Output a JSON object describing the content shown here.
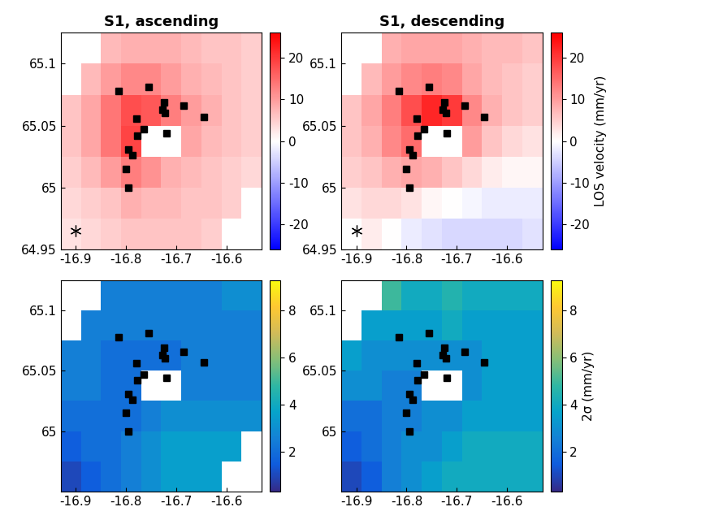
{
  "chart_data": [
    {
      "type": "heatmap",
      "title": "S1, ascending",
      "xlim": [
        -16.93,
        -16.53
      ],
      "ylim": [
        64.95,
        65.125
      ],
      "xticks": [
        -16.9,
        -16.8,
        -16.7,
        -16.6
      ],
      "yticks": [
        64.95,
        65,
        65.05,
        65.1
      ],
      "x_edges": [
        -16.93,
        -16.89,
        -16.85,
        -16.81,
        -16.77,
        -16.73,
        -16.69,
        -16.65,
        -16.61,
        -16.57,
        -16.53
      ],
      "y_edges": [
        64.95,
        64.975,
        65.0,
        65.025,
        65.05,
        65.075,
        65.1,
        65.125
      ],
      "cells": [
        [
          3,
          4,
          5,
          6,
          6,
          6,
          6,
          5,
          null,
          null
        ],
        [
          4,
          5,
          6,
          8,
          7,
          7,
          6,
          6,
          5,
          null
        ],
        [
          5,
          7,
          10,
          13,
          11,
          8,
          7,
          6,
          5,
          4
        ],
        [
          6,
          9,
          14,
          19,
          null,
          null,
          9,
          7,
          6,
          5
        ],
        [
          6,
          9,
          14,
          18,
          17,
          13,
          10,
          8,
          6,
          5
        ],
        [
          null,
          7,
          10,
          12,
          12,
          10,
          8,
          7,
          6,
          5
        ],
        [
          null,
          null,
          7,
          8,
          8,
          8,
          7,
          6,
          6,
          5
        ]
      ],
      "colorbar_range": [
        -26,
        26
      ],
      "colorbar_ticks": [
        -20,
        -10,
        0,
        10,
        20
      ],
      "stations": {
        "x": [
          -16.815,
          -16.755,
          -16.725,
          -16.728,
          -16.722,
          -16.685,
          -16.645,
          -16.78,
          -16.765,
          -16.778,
          -16.72,
          -16.795,
          -16.788,
          -16.8,
          -16.795
        ],
        "y": [
          65.078,
          65.081,
          65.069,
          65.063,
          65.06,
          65.066,
          65.057,
          65.056,
          65.047,
          65.042,
          65.044,
          65.031,
          65.026,
          65.015,
          65.0
        ],
        "marker": "square",
        "color": "#000000"
      },
      "reference_point": {
        "x": -16.9,
        "y": 64.965,
        "marker": "asterisk",
        "color": "#000000"
      }
    },
    {
      "type": "heatmap",
      "title": "S1, descending",
      "xlim": [
        -16.93,
        -16.53
      ],
      "ylim": [
        64.95,
        65.125
      ],
      "xticks": [
        -16.9,
        -16.8,
        -16.7,
        -16.6
      ],
      "yticks": [
        64.95,
        65,
        65.05,
        65.1
      ],
      "x_edges": [
        -16.93,
        -16.89,
        -16.85,
        -16.81,
        -16.77,
        -16.73,
        -16.69,
        -16.65,
        -16.61,
        -16.57,
        -16.53
      ],
      "y_edges": [
        64.95,
        64.975,
        65.0,
        65.025,
        65.05,
        65.075,
        65.1,
        65.125
      ],
      "cells": [
        [
          null,
          2,
          0,
          -2,
          -3,
          -4,
          -4,
          -4,
          -4,
          -3
        ],
        [
          3,
          4,
          4,
          3,
          1,
          0,
          -1,
          -2,
          -2,
          -2
        ],
        [
          5,
          6,
          8,
          9,
          8,
          6,
          4,
          2,
          1,
          1
        ],
        [
          6,
          8,
          12,
          15,
          null,
          null,
          10,
          6,
          4,
          3
        ],
        [
          6,
          9,
          13,
          18,
          22,
          20,
          12,
          8,
          6,
          5
        ],
        [
          null,
          7,
          10,
          12,
          13,
          12,
          9,
          7,
          6,
          5
        ],
        [
          null,
          null,
          8,
          9,
          9,
          9,
          8,
          7,
          7,
          6
        ]
      ],
      "colorbar_range": [
        -26,
        26
      ],
      "colorbar_ticks": [
        -20,
        -10,
        0,
        10,
        20
      ],
      "colorbar_label": "LOS velocity (mm/yr)",
      "stations": {
        "x": [
          -16.815,
          -16.755,
          -16.725,
          -16.728,
          -16.722,
          -16.685,
          -16.645,
          -16.78,
          -16.765,
          -16.778,
          -16.72,
          -16.795,
          -16.788,
          -16.8,
          -16.795
        ],
        "y": [
          65.078,
          65.081,
          65.069,
          65.063,
          65.06,
          65.066,
          65.057,
          65.056,
          65.047,
          65.042,
          65.044,
          65.031,
          65.026,
          65.015,
          65.0
        ],
        "marker": "square",
        "color": "#000000"
      },
      "reference_point": {
        "x": -16.9,
        "y": 64.965,
        "marker": "asterisk",
        "color": "#000000"
      }
    },
    {
      "type": "heatmap",
      "xlim": [
        -16.93,
        -16.53
      ],
      "ylim": [
        64.95,
        65.125
      ],
      "xticks": [
        -16.9,
        -16.8,
        -16.7,
        -16.6
      ],
      "yticks": [
        65,
        65.05,
        65.1
      ],
      "x_edges": [
        -16.93,
        -16.89,
        -16.85,
        -16.81,
        -16.77,
        -16.73,
        -16.69,
        -16.65,
        -16.61,
        -16.57,
        -16.53
      ],
      "y_edges": [
        64.95,
        64.975,
        65.0,
        65.025,
        65.05,
        65.075,
        65.1,
        65.125
      ],
      "cells": [
        [
          1,
          1.5,
          2,
          2.5,
          3,
          3.5,
          3.5,
          3.5,
          null,
          null
        ],
        [
          1.5,
          2,
          2,
          2.5,
          3,
          3.5,
          3.5,
          3.5,
          3.5,
          null
        ],
        [
          2,
          2,
          2,
          2,
          2.5,
          3,
          3,
          3,
          3,
          3
        ],
        [
          2.5,
          2.5,
          2,
          2,
          null,
          null,
          2.5,
          2.5,
          2.5,
          2.5
        ],
        [
          2.5,
          2.5,
          2,
          2,
          2,
          2,
          2.5,
          2.5,
          2.5,
          2.5
        ],
        [
          null,
          2.5,
          2.5,
          2.5,
          2.5,
          2.5,
          2.5,
          2.5,
          2.5,
          2.5
        ],
        [
          null,
          null,
          2.5,
          2.5,
          2.5,
          2.5,
          2.5,
          2.5,
          3,
          3
        ]
      ],
      "colorbar_range": [
        0.3,
        9.3
      ],
      "colorbar_ticks": [
        2,
        4,
        6,
        8
      ],
      "stations": {
        "x": [
          -16.815,
          -16.755,
          -16.725,
          -16.728,
          -16.722,
          -16.685,
          -16.645,
          -16.78,
          -16.765,
          -16.778,
          -16.72,
          -16.795,
          -16.788,
          -16.8,
          -16.795
        ],
        "y": [
          65.078,
          65.081,
          65.069,
          65.063,
          65.06,
          65.066,
          65.057,
          65.056,
          65.047,
          65.042,
          65.044,
          65.031,
          65.026,
          65.015,
          65.0
        ],
        "marker": "square",
        "color": "#000000"
      }
    },
    {
      "type": "heatmap",
      "xlim": [
        -16.93,
        -16.53
      ],
      "ylim": [
        64.95,
        65.125
      ],
      "xticks": [
        -16.9,
        -16.8,
        -16.7,
        -16.6
      ],
      "yticks": [
        65,
        65.05,
        65.1
      ],
      "x_edges": [
        -16.93,
        -16.89,
        -16.85,
        -16.81,
        -16.77,
        -16.73,
        -16.69,
        -16.65,
        -16.61,
        -16.57,
        -16.53
      ],
      "y_edges": [
        64.95,
        64.975,
        65.0,
        65.025,
        65.05,
        65.075,
        65.1,
        65.125
      ],
      "cells": [
        [
          1,
          1.5,
          2.5,
          3,
          3.5,
          4,
          4,
          4,
          4,
          4
        ],
        [
          1.5,
          2,
          2.5,
          3,
          3,
          3.5,
          4,
          4,
          4,
          4
        ],
        [
          2,
          2,
          2.5,
          2.5,
          3,
          3,
          3.5,
          3.5,
          3.5,
          3.5
        ],
        [
          3,
          3,
          2.5,
          2.5,
          null,
          null,
          3,
          3.5,
          3.5,
          3.5
        ],
        [
          3.5,
          3,
          3,
          3,
          3,
          3,
          3,
          3.5,
          3.5,
          3.5
        ],
        [
          null,
          3.5,
          3.5,
          3.5,
          3.5,
          4,
          3.5,
          3.5,
          3.5,
          3.5
        ],
        [
          null,
          null,
          5,
          4,
          4,
          4.5,
          4,
          4,
          4,
          4
        ]
      ],
      "colorbar_range": [
        0.3,
        9.3
      ],
      "colorbar_ticks": [
        2,
        4,
        6,
        8
      ],
      "colorbar_label": "2σ (mm/yr)",
      "stations": {
        "x": [
          -16.815,
          -16.755,
          -16.725,
          -16.728,
          -16.722,
          -16.685,
          -16.645,
          -16.78,
          -16.765,
          -16.778,
          -16.72,
          -16.795,
          -16.788,
          -16.8,
          -16.795
        ],
        "y": [
          65.078,
          65.081,
          65.069,
          65.063,
          65.06,
          65.066,
          65.057,
          65.056,
          65.047,
          65.042,
          65.044,
          65.031,
          65.026,
          65.015,
          65.0
        ],
        "marker": "square",
        "color": "#000000"
      }
    }
  ]
}
